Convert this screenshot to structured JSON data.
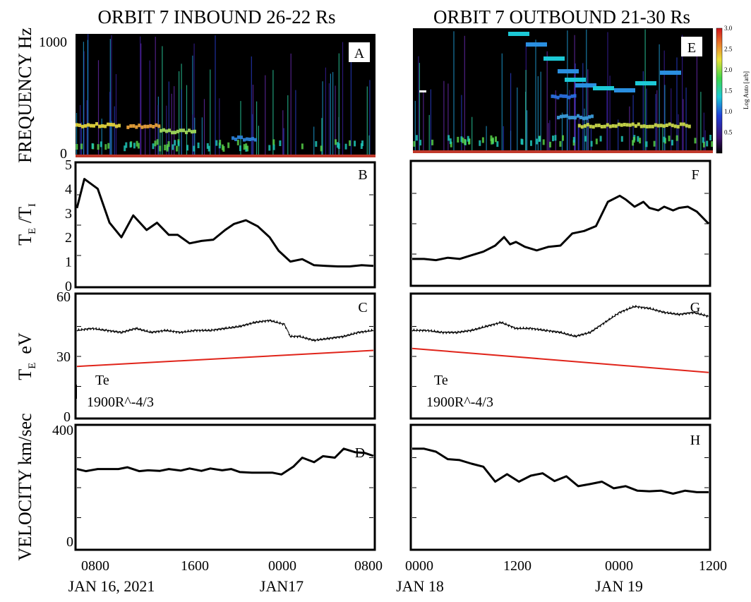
{
  "chart_data": [
    {
      "panel": "A",
      "type": "heatmap",
      "title": "ORBIT 7 INBOUND 26-22 Rs",
      "ylabel": "FREQUENCY Hz",
      "yticks": [
        "1000",
        "0"
      ],
      "ylim": [
        0,
        1000
      ],
      "bands": [
        {
          "t0": 0.0,
          "t1": 0.15,
          "f": 240,
          "c": "#e0d23c"
        },
        {
          "t0": 0.17,
          "t1": 0.28,
          "f": 230,
          "c": "#e8a13a"
        },
        {
          "t0": 0.28,
          "t1": 0.4,
          "f": 190,
          "c": "#9fd85a"
        },
        {
          "t0": 0.52,
          "t1": 0.6,
          "f": 130,
          "c": "#2b7fd6"
        }
      ]
    },
    {
      "panel": "B",
      "type": "line",
      "ylabel": "TE /TI",
      "ylabel_main": "T",
      "ylabel_sub1": "E",
      "ylabel_mid": " /T",
      "ylabel_sub2": "I",
      "ylim": [
        0,
        5
      ],
      "yticks": [
        "5",
        "4",
        "3",
        "2",
        "1",
        "0"
      ],
      "x": [
        0.0,
        0.025,
        0.07,
        0.11,
        0.15,
        0.19,
        0.235,
        0.27,
        0.31,
        0.34,
        0.38,
        0.42,
        0.46,
        0.5,
        0.53,
        0.57,
        0.61,
        0.65,
        0.68,
        0.72,
        0.76,
        0.8,
        0.84,
        0.88,
        0.92,
        0.96,
        1.0
      ],
      "values": [
        3.2,
        4.4,
        4.0,
        2.6,
        2.0,
        2.9,
        2.3,
        2.6,
        2.1,
        2.1,
        1.75,
        1.85,
        1.9,
        2.3,
        2.55,
        2.7,
        2.45,
        2.0,
        1.45,
        1.0,
        1.1,
        0.85,
        0.82,
        0.8,
        0.8,
        0.85,
        0.82
      ]
    },
    {
      "panel": "C",
      "type": "line",
      "ylabel": "TE eV",
      "ylabel_main": "T",
      "ylabel_sub": "E",
      "ylabel_unit": "eV",
      "ylim": [
        0,
        60
      ],
      "yticks": [
        "60",
        "30",
        "0"
      ],
      "series": [
        {
          "name": "Te",
          "x": [
            0.0,
            0.05,
            0.1,
            0.15,
            0.2,
            0.25,
            0.3,
            0.35,
            0.4,
            0.45,
            0.5,
            0.55,
            0.6,
            0.65,
            0.7,
            0.72,
            0.75,
            0.8,
            0.85,
            0.9,
            0.95,
            1.0
          ],
          "values": [
            43,
            44,
            43,
            42,
            44,
            42,
            43,
            42,
            43,
            43,
            44,
            45,
            47,
            48,
            46,
            40,
            40,
            38,
            39,
            40,
            42,
            43
          ]
        },
        {
          "name": "1900R^-4/3",
          "x": [
            0.0,
            1.0
          ],
          "values": [
            25,
            33
          ]
        }
      ]
    },
    {
      "panel": "D",
      "type": "line",
      "ylabel": "VELOCITY km/sec",
      "ylabel_main": "VELOCITY",
      "ylabel_unit": "km/sec",
      "ylim": [
        0,
        400
      ],
      "yticks": [
        "400",
        "0"
      ],
      "xticks": [
        "0800",
        "1600",
        "0000",
        "0800"
      ],
      "xsublabels": [
        "JAN 16, 2021",
        "JAN17"
      ],
      "x": [
        0.0,
        0.03,
        0.07,
        0.1,
        0.14,
        0.17,
        0.21,
        0.24,
        0.28,
        0.31,
        0.35,
        0.38,
        0.42,
        0.45,
        0.49,
        0.52,
        0.55,
        0.59,
        0.62,
        0.66,
        0.69,
        0.73,
        0.76,
        0.8,
        0.83,
        0.87,
        0.9,
        0.94,
        0.97,
        1.0
      ],
      "values": [
        262,
        255,
        262,
        262,
        262,
        268,
        255,
        258,
        256,
        262,
        257,
        264,
        256,
        264,
        258,
        262,
        252,
        250,
        250,
        250,
        244,
        270,
        300,
        285,
        305,
        300,
        330,
        318,
        316,
        306
      ]
    },
    {
      "panel": "E",
      "type": "heatmap",
      "title": "ORBIT 7 OUTBOUND 21-30 Rs",
      "colorbar": {
        "label": "Log Auto [arb]",
        "ticks": [
          "3.0",
          "2.5",
          "2.0",
          "1.5",
          "1.0",
          "0.5"
        ],
        "range": [
          0,
          3.0
        ]
      },
      "bands": [
        {
          "t0": 0.55,
          "t1": 0.92,
          "f": 200,
          "c": "#c9d84a"
        },
        {
          "t0": 0.48,
          "t1": 0.6,
          "f": 270,
          "c": "#3a9ad9"
        },
        {
          "t0": 0.46,
          "t1": 0.54,
          "f": 440,
          "c": "#2a6fe0"
        }
      ]
    },
    {
      "panel": "F",
      "type": "line",
      "ylim": [
        0,
        5
      ],
      "x": [
        0.0,
        0.04,
        0.08,
        0.12,
        0.16,
        0.2,
        0.24,
        0.28,
        0.31,
        0.33,
        0.35,
        0.38,
        0.42,
        0.46,
        0.5,
        0.54,
        0.58,
        0.62,
        0.66,
        0.7,
        0.72,
        0.75,
        0.78,
        0.8,
        0.83,
        0.85,
        0.88,
        0.9,
        0.93,
        0.96,
        1.0
      ],
      "values": [
        1.05,
        1.05,
        1.0,
        1.1,
        1.05,
        1.2,
        1.35,
        1.6,
        1.95,
        1.65,
        1.75,
        1.55,
        1.4,
        1.55,
        1.6,
        2.1,
        2.2,
        2.4,
        3.4,
        3.65,
        3.5,
        3.2,
        3.4,
        3.15,
        3.05,
        3.2,
        3.05,
        3.15,
        3.2,
        3.0,
        2.5
      ]
    },
    {
      "panel": "G",
      "type": "line",
      "ylim": [
        0,
        60
      ],
      "series": [
        {
          "name": "Te",
          "x": [
            0.0,
            0.05,
            0.1,
            0.15,
            0.2,
            0.25,
            0.3,
            0.35,
            0.4,
            0.45,
            0.5,
            0.55,
            0.6,
            0.65,
            0.7,
            0.75,
            0.8,
            0.85,
            0.9,
            0.95,
            1.0
          ],
          "values": [
            43,
            43,
            42,
            42,
            43,
            45,
            47,
            44,
            44,
            43,
            42,
            40,
            42,
            47,
            52,
            55,
            54,
            52,
            51,
            52,
            50
          ]
        },
        {
          "name": "1900R^-4/3",
          "x": [
            0.0,
            1.0
          ],
          "values": [
            34,
            22
          ]
        }
      ]
    },
    {
      "panel": "H",
      "type": "line",
      "ylim": [
        0,
        400
      ],
      "xticks": [
        "0000",
        "1200",
        "0000",
        "1200"
      ],
      "xsublabels": [
        "JAN 18",
        "JAN 19"
      ],
      "x": [
        0.0,
        0.04,
        0.08,
        0.12,
        0.16,
        0.2,
        0.24,
        0.28,
        0.32,
        0.36,
        0.4,
        0.44,
        0.48,
        0.52,
        0.56,
        0.6,
        0.64,
        0.68,
        0.72,
        0.76,
        0.8,
        0.84,
        0.88,
        0.92,
        0.96,
        1.0
      ],
      "values": [
        330,
        330,
        320,
        295,
        292,
        280,
        270,
        220,
        245,
        220,
        240,
        248,
        222,
        238,
        205,
        212,
        220,
        198,
        205,
        190,
        188,
        190,
        180,
        190,
        185,
        185
      ]
    }
  ],
  "labels": {
    "panels": [
      "A",
      "B",
      "C",
      "D",
      "E",
      "F",
      "G",
      "H"
    ],
    "te": "Te",
    "model": "1900R^-4/3"
  }
}
